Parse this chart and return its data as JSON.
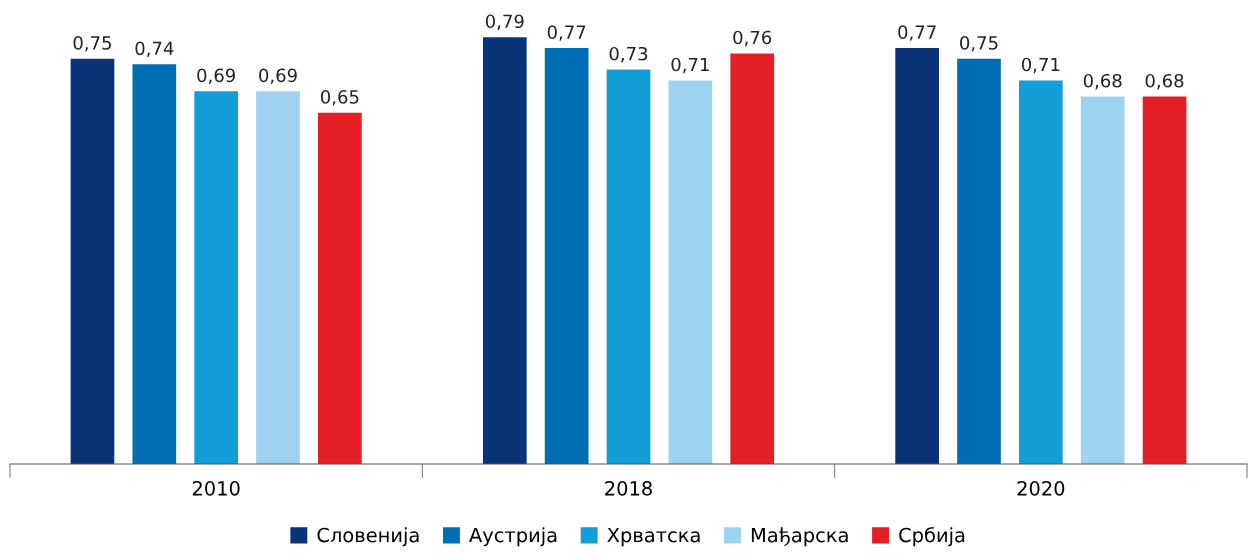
{
  "chart_data": {
    "type": "bar",
    "categories": [
      "2010",
      "2018",
      "2020"
    ],
    "series": [
      {
        "name": "Словенија",
        "color": "#0b3478",
        "values": [
          0.75,
          0.79,
          0.77
        ],
        "value_labels": [
          "0,75",
          "0,79",
          "0,77"
        ]
      },
      {
        "name": "Аустрија",
        "color": "#006eb4",
        "values": [
          0.74,
          0.77,
          0.75
        ],
        "value_labels": [
          "0,74",
          "0,77",
          "0,75"
        ]
      },
      {
        "name": "Хрватска",
        "color": "#139ed8",
        "values": [
          0.69,
          0.73,
          0.71
        ],
        "value_labels": [
          "0,69",
          "0,73",
          "0,71"
        ]
      },
      {
        "name": "Мађарска",
        "color": "#9dd3f0",
        "values": [
          0.69,
          0.71,
          0.68
        ],
        "value_labels": [
          "0,69",
          "0,71",
          "0,68"
        ]
      },
      {
        "name": "Србија",
        "color": "#e41f26",
        "values": [
          0.65,
          0.76,
          0.68
        ],
        "value_labels": [
          "0,65",
          "0,76",
          "0,68"
        ]
      }
    ],
    "legend": "bottom",
    "grid": false
  }
}
